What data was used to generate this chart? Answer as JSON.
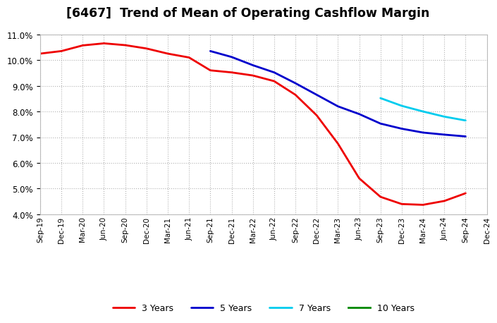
{
  "title": "[6467]  Trend of Mean of Operating Cashflow Margin",
  "title_fontsize": 12.5,
  "background_color": "#ffffff",
  "grid_color": "#aaaaaa",
  "ylim": [
    0.04,
    0.11
  ],
  "yticks": [
    0.04,
    0.05,
    0.06,
    0.07,
    0.08,
    0.09,
    0.1,
    0.11
  ],
  "x_tick_labels": [
    "Sep-19",
    "Dec-19",
    "Mar-20",
    "Jun-20",
    "Sep-20",
    "Dec-20",
    "Mar-21",
    "Jun-21",
    "Sep-21",
    "Dec-21",
    "Mar-22",
    "Jun-22",
    "Sep-22",
    "Dec-22",
    "Mar-23",
    "Jun-23",
    "Sep-23",
    "Dec-23",
    "Mar-24",
    "Jun-24",
    "Sep-24",
    "Dec-24"
  ],
  "series": {
    "3 Years": {
      "color": "#ee0000",
      "x_indices": [
        0,
        1,
        2,
        3,
        4,
        5,
        6,
        7,
        8,
        9,
        10,
        11,
        12,
        13,
        14,
        15,
        16,
        17,
        18,
        19,
        20
      ],
      "values": [
        0.1025,
        0.1035,
        0.1057,
        0.1065,
        0.1058,
        0.1045,
        0.1025,
        0.101,
        0.096,
        0.0952,
        0.094,
        0.0918,
        0.0865,
        0.0785,
        0.0675,
        0.054,
        0.0468,
        0.044,
        0.0437,
        0.0452,
        0.0482
      ]
    },
    "5 Years": {
      "color": "#0000cc",
      "x_indices": [
        8,
        9,
        10,
        11,
        12,
        13,
        14,
        15,
        16,
        17,
        18,
        19,
        20
      ],
      "values": [
        0.1035,
        0.1012,
        0.098,
        0.0952,
        0.091,
        0.0865,
        0.082,
        0.079,
        0.0753,
        0.0733,
        0.0718,
        0.071,
        0.0703
      ]
    },
    "7 Years": {
      "color": "#00ccee",
      "x_indices": [
        16,
        17,
        18,
        19,
        20
      ],
      "values": [
        0.0852,
        0.0822,
        0.08,
        0.078,
        0.0765
      ]
    },
    "10 Years": {
      "color": "#008800",
      "x_indices": [],
      "values": []
    }
  },
  "legend_order": [
    "3 Years",
    "5 Years",
    "7 Years",
    "10 Years"
  ]
}
